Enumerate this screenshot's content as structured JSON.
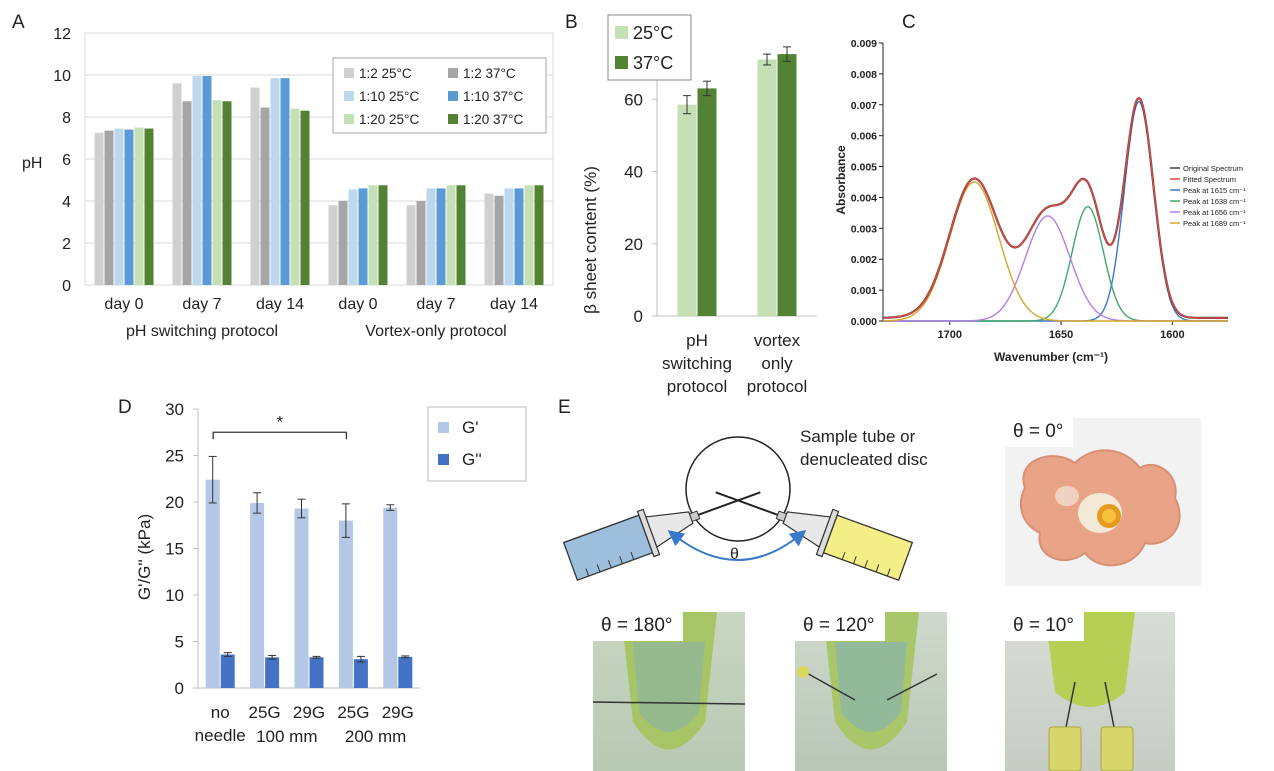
{
  "panels": {
    "A": "A",
    "B": "B",
    "C": "C",
    "D": "D",
    "E": "E"
  },
  "chart_data": [
    {
      "id": "A",
      "type": "bar",
      "ylabel": "pH",
      "ylim": [
        0,
        12
      ],
      "yticks": [
        0,
        2,
        4,
        6,
        8,
        10,
        12
      ],
      "grid": true,
      "legend_position": "top-right",
      "categories": [
        "day 0",
        "day 7",
        "day 14",
        "day 0",
        "day 7",
        "day 14"
      ],
      "groups": [
        "pH switching protocol",
        "Vortex-only protocol"
      ],
      "series": [
        {
          "name": "1:2 25°C",
          "color": "#d0d0d0",
          "values": [
            7.25,
            9.6,
            9.4,
            3.8,
            3.8,
            4.35
          ]
        },
        {
          "name": "1:2 37°C",
          "color": "#a6a6a6",
          "values": [
            7.35,
            8.75,
            8.45,
            4.0,
            4.0,
            4.25
          ]
        },
        {
          "name": "1:10 25°C",
          "color": "#bdd7ee",
          "values": [
            7.45,
            9.95,
            9.85,
            4.55,
            4.6,
            4.6
          ]
        },
        {
          "name": "1:10 37°C",
          "color": "#5b9bd5",
          "values": [
            7.4,
            9.95,
            9.85,
            4.6,
            4.6,
            4.6
          ]
        },
        {
          "name": "1:20 25°C",
          "color": "#c5e0b4",
          "values": [
            7.5,
            8.8,
            8.4,
            4.75,
            4.75,
            4.75
          ]
        },
        {
          "name": "1:20 37°C",
          "color": "#548235",
          "values": [
            7.45,
            8.75,
            8.3,
            4.75,
            4.75,
            4.75
          ]
        }
      ]
    },
    {
      "id": "B",
      "type": "bar",
      "ylabel": "β sheet content (%)",
      "ylim": [
        0,
        80
      ],
      "yticks": [
        0,
        20,
        40,
        60
      ],
      "legend_position": "top-left",
      "categories": [
        [
          "pH",
          "switching",
          "protocol"
        ],
        [
          "vortex",
          "only",
          "protocol"
        ]
      ],
      "series": [
        {
          "name": "25°C",
          "color": "#c5e0b4",
          "values": [
            58.5,
            71
          ],
          "errors": [
            2.5,
            1.5
          ]
        },
        {
          "name": "37°C",
          "color": "#548235",
          "values": [
            63,
            72.5
          ],
          "errors": [
            2.0,
            2.0
          ]
        }
      ]
    },
    {
      "id": "C",
      "type": "line",
      "xlabel": "Wavenumber (cm⁻¹)",
      "ylabel": "Absorbance",
      "xlim": [
        1730,
        1575
      ],
      "xticks": [
        1700,
        1650,
        1600
      ],
      "ylim": [
        0,
        0.009
      ],
      "yticks": [
        "0.000",
        "0.001",
        "0.002",
        "0.003",
        "0.004",
        "0.005",
        "0.006",
        "0.007",
        "0.008",
        "0.009"
      ],
      "legend_position": "right",
      "baseline": 0.0001,
      "peaks": [
        {
          "center": 1615,
          "amplitude": 0.0071,
          "width": 6.5
        },
        {
          "center": 1638,
          "amplitude": 0.0037,
          "width": 7
        },
        {
          "center": 1656,
          "amplitude": 0.0034,
          "width": 10
        },
        {
          "center": 1689,
          "amplitude": 0.0045,
          "width": 11
        }
      ],
      "series": [
        {
          "name": "Original Spectrum",
          "color": "#404040"
        },
        {
          "name": "Fitted Spectrum",
          "color": "#e8453c"
        },
        {
          "name": "Peak at 1615 cm⁻¹",
          "color": "#3a78c9"
        },
        {
          "name": "Peak at 1638 cm⁻¹",
          "color": "#3ea968"
        },
        {
          "name": "Peak at 1656 cm⁻¹",
          "color": "#b67ee0"
        },
        {
          "name": "Peak at 1689 cm⁻¹",
          "color": "#d9a52b"
        }
      ]
    },
    {
      "id": "D",
      "type": "bar",
      "ylabel": "G'/G'' (kPa)",
      "ylim": [
        0,
        30
      ],
      "yticks": [
        0,
        5,
        10,
        15,
        20,
        25,
        30
      ],
      "legend_position": "top-right",
      "categories": [
        [
          "no",
          "needle"
        ],
        [
          "25G"
        ],
        [
          "29G"
        ],
        [
          "25G"
        ],
        [
          "29G"
        ]
      ],
      "groups": [
        "100 mm",
        "200 mm"
      ],
      "annotation": "*",
      "series": [
        {
          "name": "G'",
          "color": "#b4c7e7",
          "values": [
            22.4,
            19.9,
            19.3,
            18.0,
            19.4
          ],
          "errors": [
            2.5,
            1.1,
            1.0,
            1.8,
            0.3
          ]
        },
        {
          "name": "G''",
          "color": "#4472c4",
          "values": [
            3.6,
            3.3,
            3.3,
            3.1,
            3.35
          ],
          "errors": [
            0.2,
            0.2,
            0.1,
            0.3,
            0.1
          ]
        }
      ]
    }
  ],
  "panel_e": {
    "tube_label": [
      "Sample tube or",
      "denucleated disc"
    ],
    "angle_symbol": "θ",
    "photos": [
      "θ = 0°",
      "θ = 180°",
      "θ = 120°",
      "θ = 10°"
    ]
  }
}
